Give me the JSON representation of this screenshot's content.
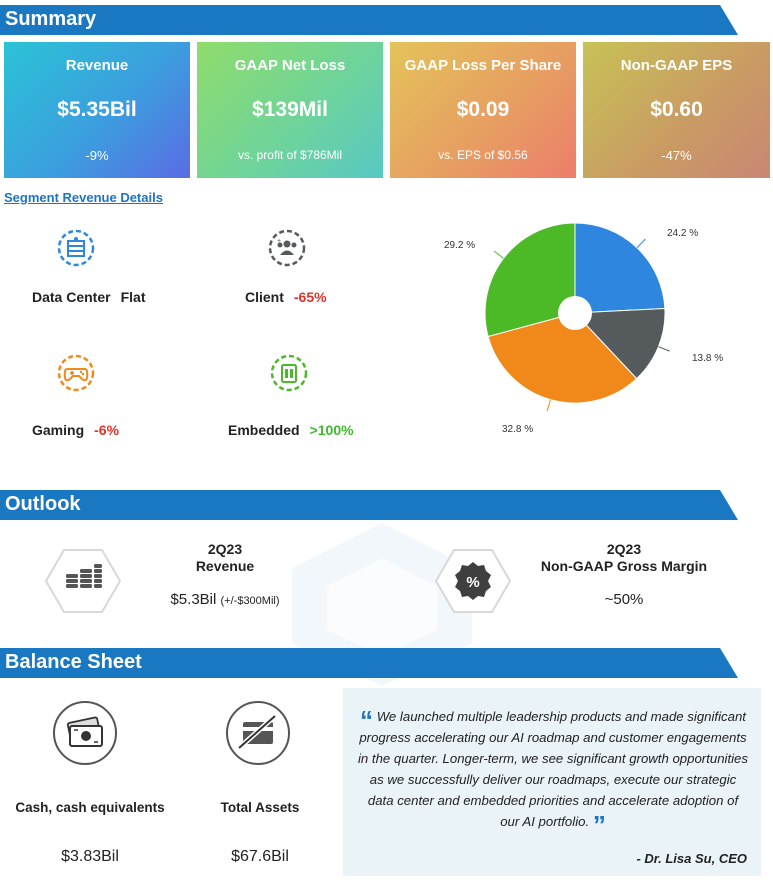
{
  "summary": {
    "heading": "Summary",
    "cards": [
      {
        "title": "Revenue",
        "value": "$5.35Bil",
        "sub": "-9%"
      },
      {
        "title": "GAAP Net Loss",
        "value": "$139Mil",
        "sub": "vs. profit of $786Mil"
      },
      {
        "title": "GAAP Loss Per Share",
        "value": "$0.09",
        "sub": "vs. EPS of $0.56"
      },
      {
        "title": "Non-GAAP EPS",
        "value": "$0.60",
        "sub": "-47%"
      }
    ]
  },
  "segments": {
    "link": "Segment Revenue Details",
    "items": [
      {
        "name": "Data Center",
        "change": "Flat",
        "icon": "data-center-icon",
        "color": "#222222"
      },
      {
        "name": "Client",
        "change": "-65%",
        "icon": "client-icon",
        "color": "#e0312b"
      },
      {
        "name": "Gaming",
        "change": "-6%",
        "icon": "gaming-icon",
        "color": "#e0312b"
      },
      {
        "name": "Embedded",
        "change": ">100%",
        "icon": "embedded-icon",
        "color": "#3dbb2d"
      }
    ]
  },
  "chart_data": {
    "type": "pie",
    "style": "donut",
    "slices": [
      {
        "label": "24.2 %",
        "value": 24.2,
        "color": "#2f86df"
      },
      {
        "label": "13.8 %",
        "value": 13.8,
        "color": "#555a5c"
      },
      {
        "label": "32.8 %",
        "value": 32.8,
        "color": "#f0881a"
      },
      {
        "label": "29.2 %",
        "value": 29.2,
        "color": "#4cba27"
      }
    ]
  },
  "outlook": {
    "heading": "Outlook",
    "items": [
      {
        "period": "2Q23",
        "metric": "Revenue",
        "value": "$5.3Bil",
        "note": "(+/-$300Mil)",
        "icon": "coins-icon"
      },
      {
        "period": "2Q23",
        "metric": "Non-GAAP Gross Margin",
        "value": "~50%",
        "note": "",
        "icon": "percent-icon"
      }
    ]
  },
  "balance": {
    "heading": "Balance Sheet",
    "items": [
      {
        "label": "Cash, cash equivalents",
        "value": "$3.83Bil",
        "icon": "cash-icon"
      },
      {
        "label": "Total Assets",
        "value": "$67.6Bil",
        "icon": "no-card-icon"
      }
    ]
  },
  "quote": {
    "text": "We launched multiple leadership products and made significant progress accelerating our AI roadmap and customer engagements in the quarter. Longer-term, we see significant growth opportunities as we successfully deliver our roadmaps, execute our strategic data center and embedded priorities and accelerate adoption of our AI portfolio.",
    "author": "- Dr. Lisa Su, CEO"
  },
  "colors": {
    "banner": "#1a78c2",
    "accent": "#1f73c4"
  }
}
